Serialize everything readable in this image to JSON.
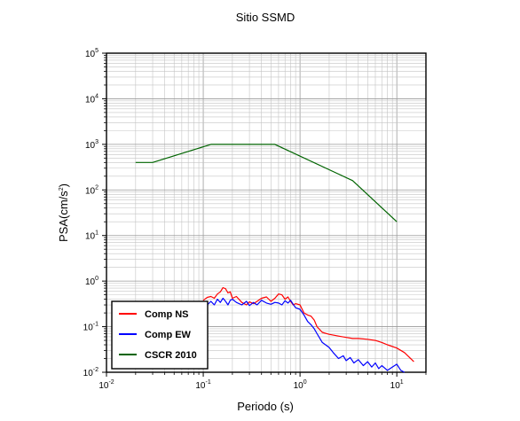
{
  "chart_data": {
    "type": "line",
    "title": "Sitio SSMD",
    "xlabel": "Periodo (s)",
    "ylabel_main": "PSA(cm/s",
    "ylabel_sup": "2",
    "ylabel_tail": ")",
    "x_scale": "log",
    "y_scale": "log",
    "xlim": [
      0.01,
      20
    ],
    "ylim": [
      0.01,
      100000
    ],
    "grid": true,
    "x_ticks": [
      {
        "value": 0.01,
        "base": "10",
        "exp": "-2"
      },
      {
        "value": 0.1,
        "base": "10",
        "exp": "-1"
      },
      {
        "value": 1,
        "base": "10",
        "exp": "0"
      },
      {
        "value": 10,
        "base": "10",
        "exp": "1"
      }
    ],
    "y_ticks": [
      {
        "value": 0.01,
        "base": "10",
        "exp": "-2"
      },
      {
        "value": 0.1,
        "base": "10",
        "exp": "-1"
      },
      {
        "value": 1,
        "base": "10",
        "exp": "0"
      },
      {
        "value": 10,
        "base": "10",
        "exp": "1"
      },
      {
        "value": 100,
        "base": "10",
        "exp": "2"
      },
      {
        "value": 1000,
        "base": "10",
        "exp": "3"
      },
      {
        "value": 10000,
        "base": "10",
        "exp": "4"
      },
      {
        "value": 100000,
        "base": "10",
        "exp": "5"
      }
    ],
    "legend_position": "bottom-left",
    "series": [
      {
        "name": "Comp NS",
        "color": "#ff0000",
        "x": [
          0.1,
          0.11,
          0.12,
          0.13,
          0.14,
          0.15,
          0.16,
          0.17,
          0.18,
          0.19,
          0.2,
          0.22,
          0.25,
          0.28,
          0.3,
          0.33,
          0.36,
          0.4,
          0.45,
          0.5,
          0.55,
          0.6,
          0.65,
          0.7,
          0.75,
          0.8,
          0.85,
          0.9,
          1.0,
          1.1,
          1.2,
          1.3,
          1.4,
          1.5,
          1.7,
          2.0,
          2.5,
          3.0,
          3.5,
          4.0,
          5.0,
          6.0,
          7.0,
          8.0,
          10.0,
          12.0,
          15.0
        ],
        "values": [
          0.38,
          0.44,
          0.46,
          0.42,
          0.52,
          0.58,
          0.72,
          0.68,
          0.55,
          0.58,
          0.42,
          0.46,
          0.34,
          0.3,
          0.35,
          0.32,
          0.36,
          0.42,
          0.45,
          0.36,
          0.42,
          0.52,
          0.5,
          0.4,
          0.45,
          0.36,
          0.3,
          0.32,
          0.3,
          0.2,
          0.18,
          0.17,
          0.14,
          0.1,
          0.075,
          0.068,
          0.062,
          0.058,
          0.055,
          0.055,
          0.053,
          0.05,
          0.045,
          0.04,
          0.034,
          0.027,
          0.017
        ]
      },
      {
        "name": "Comp EW",
        "color": "#0000ff",
        "x": [
          0.1,
          0.11,
          0.12,
          0.13,
          0.14,
          0.15,
          0.16,
          0.17,
          0.18,
          0.19,
          0.2,
          0.22,
          0.25,
          0.28,
          0.3,
          0.33,
          0.36,
          0.4,
          0.45,
          0.5,
          0.55,
          0.6,
          0.65,
          0.7,
          0.75,
          0.8,
          0.85,
          0.9,
          1.0,
          1.1,
          1.2,
          1.3,
          1.4,
          1.5,
          1.7,
          2.0,
          2.2,
          2.5,
          2.8,
          3.0,
          3.3,
          3.6,
          4.0,
          4.5,
          5.0,
          5.5,
          6.0,
          6.5,
          7.0,
          8.0,
          9.0,
          10.0,
          11.0,
          12.0
        ],
        "values": [
          0.32,
          0.3,
          0.36,
          0.3,
          0.4,
          0.34,
          0.42,
          0.36,
          0.3,
          0.38,
          0.4,
          0.34,
          0.3,
          0.36,
          0.29,
          0.34,
          0.3,
          0.38,
          0.33,
          0.31,
          0.34,
          0.33,
          0.3,
          0.37,
          0.33,
          0.38,
          0.31,
          0.26,
          0.24,
          0.18,
          0.13,
          0.11,
          0.09,
          0.07,
          0.045,
          0.035,
          0.027,
          0.02,
          0.023,
          0.018,
          0.021,
          0.016,
          0.019,
          0.014,
          0.017,
          0.013,
          0.016,
          0.012,
          0.014,
          0.011,
          0.013,
          0.015,
          0.011,
          0.01
        ]
      },
      {
        "name": "CSCR 2010",
        "color": "#006400",
        "x": [
          0.02,
          0.03,
          0.12,
          0.55,
          3.5,
          10.0
        ],
        "values": [
          400,
          400,
          1000,
          1000,
          160,
          20
        ]
      }
    ]
  }
}
